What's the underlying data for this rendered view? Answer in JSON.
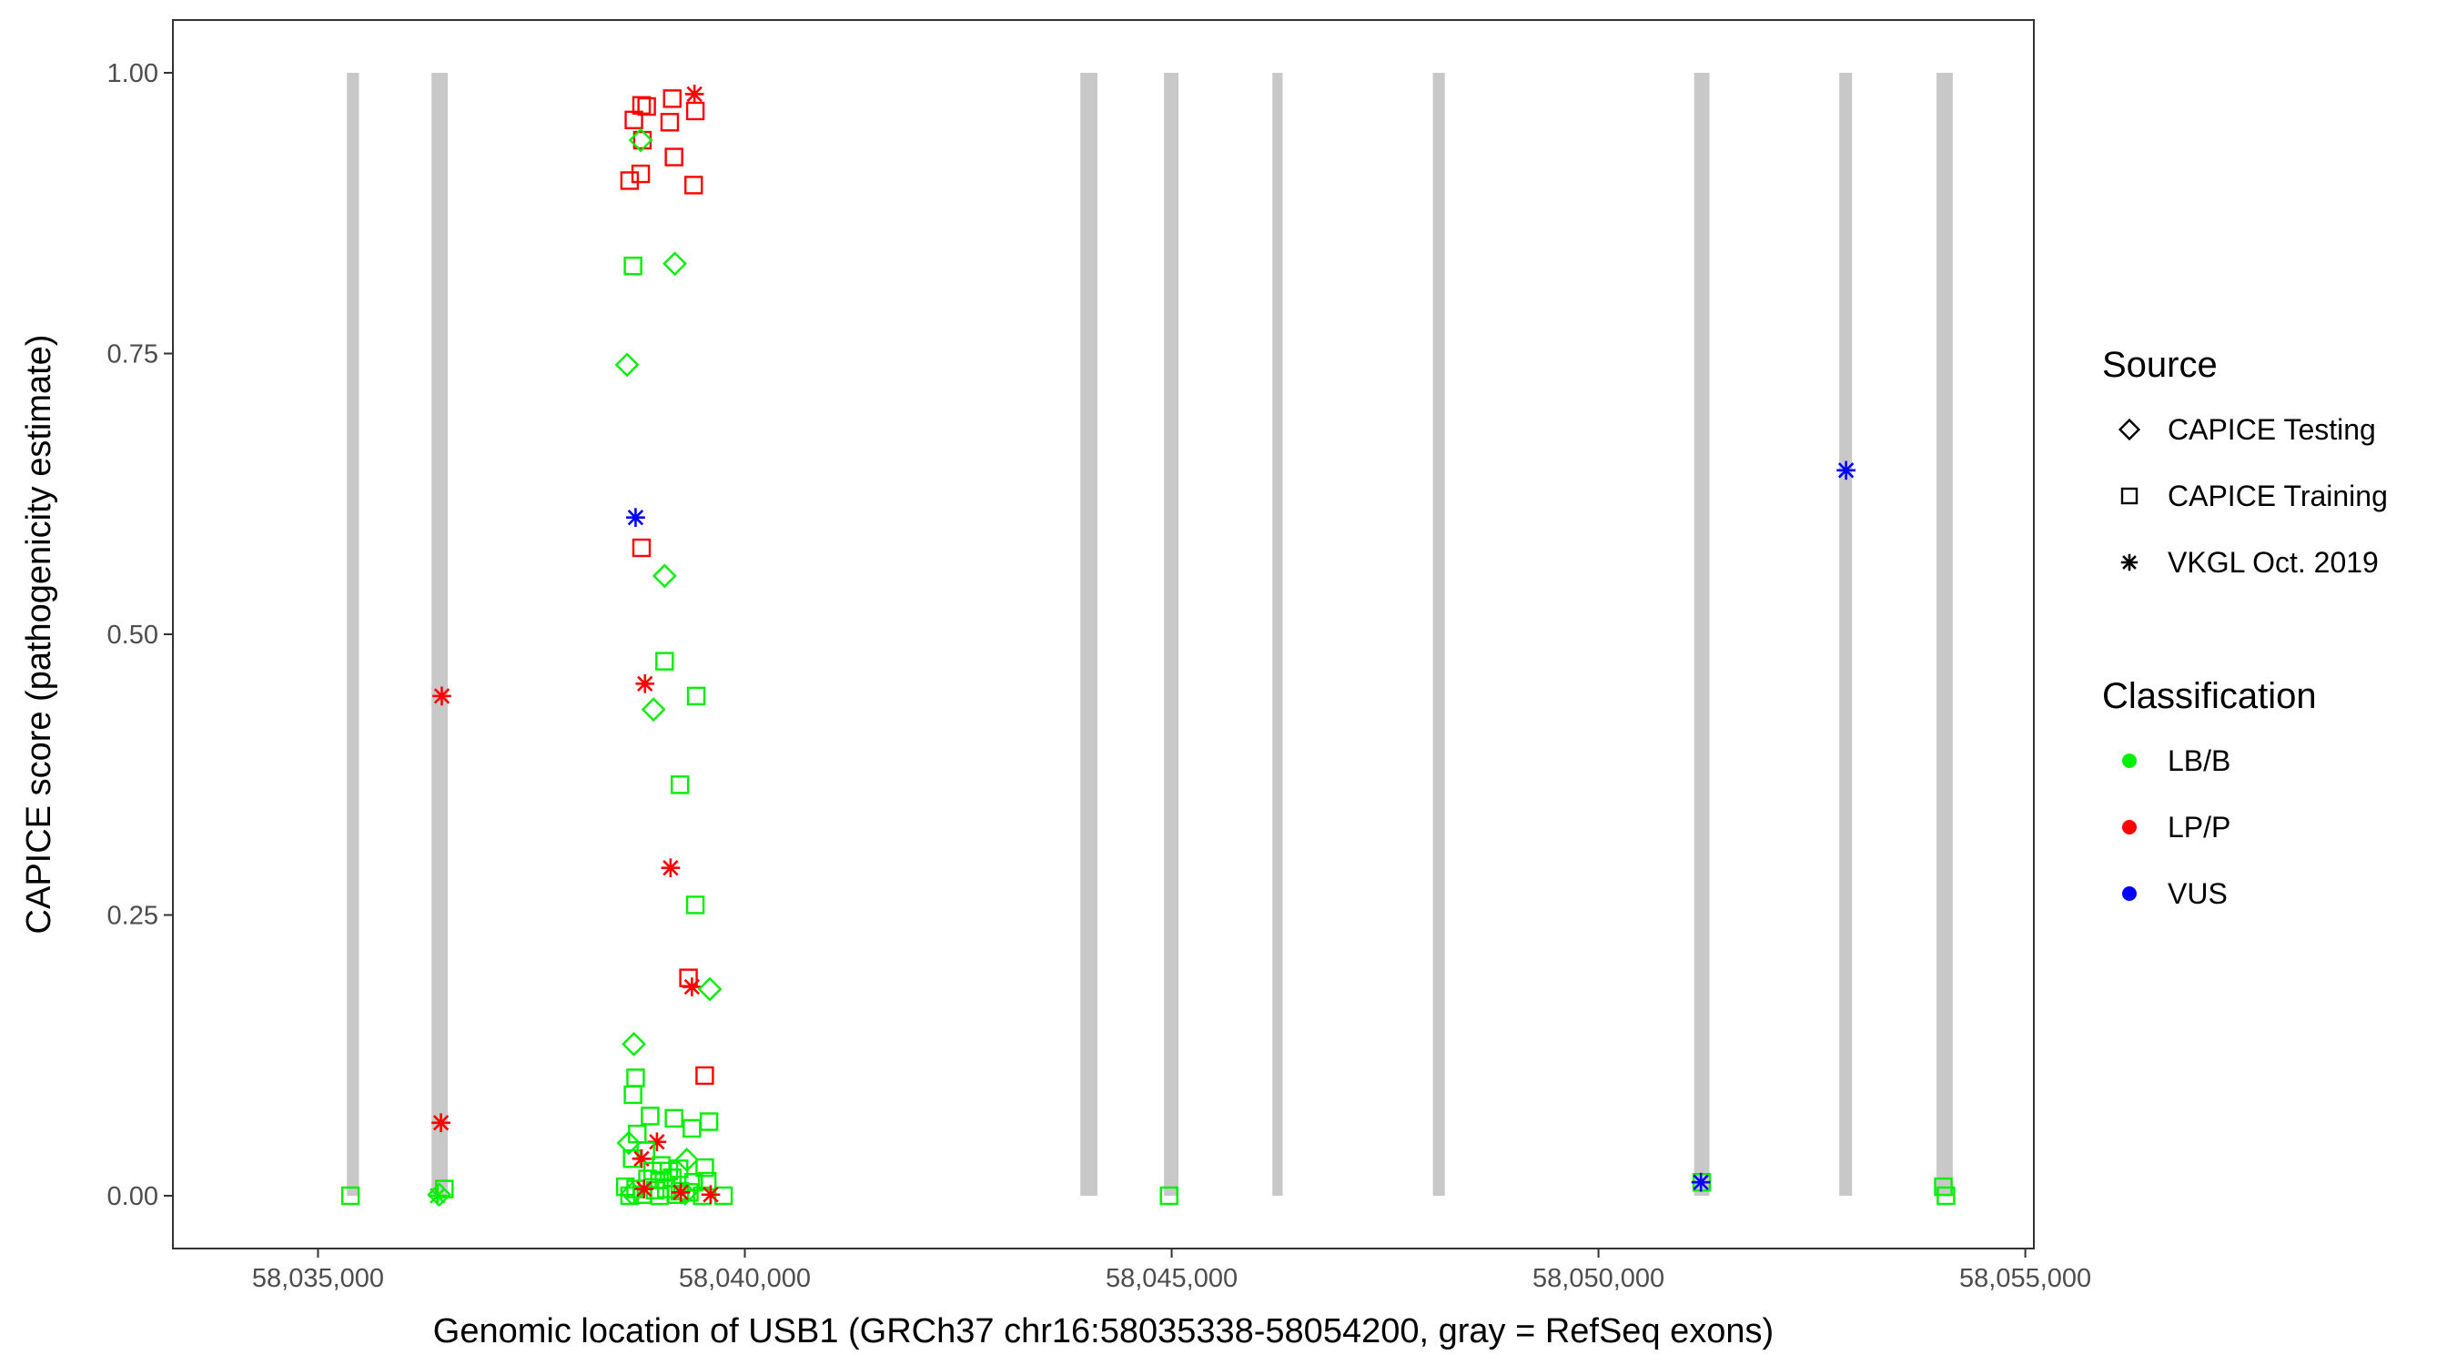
{
  "chart_data": {
    "type": "scatter",
    "xlabel": "Genomic location of USB1 (GRCh37 chr16:58035338-58054200, gray = RefSeq exons)",
    "ylabel": "CAPICE score (pathogenicity estimate)",
    "xlim": [
      58033300,
      58055100
    ],
    "ylim": [
      -0.047,
      1.047
    ],
    "x_ticks": [
      58035000,
      58040000,
      58045000,
      58050000,
      58055000
    ],
    "x_tick_labels": [
      "58,035,000",
      "58,040,000",
      "58,045,000",
      "58,050,000",
      "58,055,000"
    ],
    "y_ticks": [
      0,
      0.25,
      0.5,
      0.75,
      1.0
    ],
    "y_tick_labels": [
      "0.00",
      "0.25",
      "0.50",
      "0.75",
      "1.00"
    ],
    "grid": false,
    "exons": [
      {
        "start": 58035338,
        "end": 58035480
      },
      {
        "start": 58036330,
        "end": 58036520
      },
      {
        "start": 58043930,
        "end": 58044130
      },
      {
        "start": 58044910,
        "end": 58045080
      },
      {
        "start": 58046180,
        "end": 58046300
      },
      {
        "start": 58048060,
        "end": 58048200
      },
      {
        "start": 58051120,
        "end": 58051300
      },
      {
        "start": 58052820,
        "end": 58052970
      },
      {
        "start": 58053960,
        "end": 58054150
      }
    ],
    "legends": [
      {
        "title": "Source",
        "position": "right",
        "items": [
          {
            "label": "CAPICE Testing",
            "shape": "diamond"
          },
          {
            "label": "CAPICE Training",
            "shape": "square"
          },
          {
            "label": "VKGL Oct. 2019",
            "shape": "asterisk"
          }
        ]
      },
      {
        "title": "Classification",
        "position": "right",
        "items": [
          {
            "label": "LB/B",
            "color": "#00ee00"
          },
          {
            "label": "LP/P",
            "color": "#ff0000"
          },
          {
            "label": "VUS",
            "color": "#0000ff"
          }
        ]
      }
    ],
    "colors": {
      "LB/B": "#00ee00",
      "LP/P": "#ff0000",
      "VUS": "#0000ff",
      "exon": "#c8c8c8"
    },
    "points": [
      {
        "x": 58035380,
        "y": 0.0,
        "source": "CAPICE Training",
        "class": "LB/B"
      },
      {
        "x": 58036480,
        "y": 0.006,
        "source": "CAPICE Training",
        "class": "LB/B"
      },
      {
        "x": 58036420,
        "y": 0.001,
        "source": "CAPICE Testing",
        "class": "LB/B"
      },
      {
        "x": 58036400,
        "y": 0.0,
        "source": "VKGL Oct. 2019",
        "class": "LB/B"
      },
      {
        "x": 58036450,
        "y": 0.445,
        "source": "VKGL Oct. 2019",
        "class": "LP/P"
      },
      {
        "x": 58036440,
        "y": 0.065,
        "source": "VKGL Oct. 2019",
        "class": "LP/P"
      },
      {
        "x": 58038650,
        "y": 0.904,
        "source": "CAPICE Training",
        "class": "LP/P"
      },
      {
        "x": 58038700,
        "y": 0.958,
        "source": "CAPICE Training",
        "class": "LP/P"
      },
      {
        "x": 58038790,
        "y": 0.971,
        "source": "CAPICE Training",
        "class": "LP/P"
      },
      {
        "x": 58038850,
        "y": 0.97,
        "source": "CAPICE Training",
        "class": "LP/P"
      },
      {
        "x": 58038800,
        "y": 0.94,
        "source": "CAPICE Training",
        "class": "LP/P"
      },
      {
        "x": 58038780,
        "y": 0.91,
        "source": "CAPICE Training",
        "class": "LP/P"
      },
      {
        "x": 58039150,
        "y": 0.977,
        "source": "CAPICE Training",
        "class": "LP/P"
      },
      {
        "x": 58039120,
        "y": 0.956,
        "source": "CAPICE Training",
        "class": "LP/P"
      },
      {
        "x": 58039170,
        "y": 0.925,
        "source": "CAPICE Training",
        "class": "LP/P"
      },
      {
        "x": 58039420,
        "y": 0.966,
        "source": "CAPICE Training",
        "class": "LP/P"
      },
      {
        "x": 58039400,
        "y": 0.9,
        "source": "CAPICE Training",
        "class": "LP/P"
      },
      {
        "x": 58039410,
        "y": 0.981,
        "source": "VKGL Oct. 2019",
        "class": "LP/P"
      },
      {
        "x": 58038780,
        "y": 0.94,
        "source": "CAPICE Testing",
        "class": "LB/B"
      },
      {
        "x": 58038690,
        "y": 0.828,
        "source": "CAPICE Training",
        "class": "LB/B"
      },
      {
        "x": 58039180,
        "y": 0.83,
        "source": "CAPICE Testing",
        "class": "LB/B"
      },
      {
        "x": 58038620,
        "y": 0.74,
        "source": "CAPICE Testing",
        "class": "LB/B"
      },
      {
        "x": 58038720,
        "y": 0.604,
        "source": "VKGL Oct. 2019",
        "class": "VUS"
      },
      {
        "x": 58038790,
        "y": 0.577,
        "source": "CAPICE Training",
        "class": "LP/P"
      },
      {
        "x": 58039060,
        "y": 0.552,
        "source": "CAPICE Testing",
        "class": "LB/B"
      },
      {
        "x": 58039060,
        "y": 0.476,
        "source": "CAPICE Training",
        "class": "LB/B"
      },
      {
        "x": 58038830,
        "y": 0.456,
        "source": "VKGL Oct. 2019",
        "class": "LP/P"
      },
      {
        "x": 58039430,
        "y": 0.445,
        "source": "CAPICE Training",
        "class": "LB/B"
      },
      {
        "x": 58038930,
        "y": 0.433,
        "source": "CAPICE Testing",
        "class": "LB/B"
      },
      {
        "x": 58039240,
        "y": 0.366,
        "source": "CAPICE Training",
        "class": "LB/B"
      },
      {
        "x": 58039130,
        "y": 0.292,
        "source": "VKGL Oct. 2019",
        "class": "LP/P"
      },
      {
        "x": 58039420,
        "y": 0.259,
        "source": "CAPICE Training",
        "class": "LB/B"
      },
      {
        "x": 58039340,
        "y": 0.194,
        "source": "CAPICE Training",
        "class": "LP/P"
      },
      {
        "x": 58039380,
        "y": 0.186,
        "source": "VKGL Oct. 2019",
        "class": "LP/P"
      },
      {
        "x": 58039590,
        "y": 0.184,
        "source": "CAPICE Testing",
        "class": "LB/B"
      },
      {
        "x": 58038700,
        "y": 0.135,
        "source": "CAPICE Testing",
        "class": "LB/B"
      },
      {
        "x": 58039530,
        "y": 0.107,
        "source": "CAPICE Training",
        "class": "LP/P"
      },
      {
        "x": 58038720,
        "y": 0.105,
        "source": "CAPICE Training",
        "class": "LB/B"
      },
      {
        "x": 58038690,
        "y": 0.09,
        "source": "CAPICE Training",
        "class": "LB/B"
      },
      {
        "x": 58038890,
        "y": 0.071,
        "source": "CAPICE Training",
        "class": "LB/B"
      },
      {
        "x": 58039170,
        "y": 0.069,
        "source": "CAPICE Training",
        "class": "LB/B"
      },
      {
        "x": 58039580,
        "y": 0.066,
        "source": "CAPICE Training",
        "class": "LB/B"
      },
      {
        "x": 58039380,
        "y": 0.06,
        "source": "CAPICE Training",
        "class": "LB/B"
      },
      {
        "x": 58038740,
        "y": 0.055,
        "source": "CAPICE Training",
        "class": "LB/B"
      },
      {
        "x": 58038640,
        "y": 0.047,
        "source": "CAPICE Testing",
        "class": "LB/B"
      },
      {
        "x": 58038970,
        "y": 0.048,
        "source": "VKGL Oct. 2019",
        "class": "LP/P"
      },
      {
        "x": 58038840,
        "y": 0.04,
        "source": "CAPICE Training",
        "class": "LB/B"
      },
      {
        "x": 58038680,
        "y": 0.033,
        "source": "CAPICE Training",
        "class": "LB/B"
      },
      {
        "x": 58038790,
        "y": 0.033,
        "source": "VKGL Oct. 2019",
        "class": "LP/P"
      },
      {
        "x": 58039320,
        "y": 0.032,
        "source": "CAPICE Testing",
        "class": "LB/B"
      },
      {
        "x": 58039020,
        "y": 0.027,
        "source": "CAPICE Training",
        "class": "LB/B"
      },
      {
        "x": 58039530,
        "y": 0.025,
        "source": "CAPICE Training",
        "class": "LB/B"
      },
      {
        "x": 58038920,
        "y": 0.022,
        "source": "CAPICE Training",
        "class": "LB/B"
      },
      {
        "x": 58039110,
        "y": 0.022,
        "source": "CAPICE Training",
        "class": "LB/B"
      },
      {
        "x": 58039230,
        "y": 0.024,
        "source": "CAPICE Training",
        "class": "LB/B"
      },
      {
        "x": 58038860,
        "y": 0.015,
        "source": "CAPICE Training",
        "class": "LB/B"
      },
      {
        "x": 58039000,
        "y": 0.014,
        "source": "CAPICE Training",
        "class": "LB/B"
      },
      {
        "x": 58039150,
        "y": 0.016,
        "source": "CAPICE Training",
        "class": "LB/B"
      },
      {
        "x": 58039400,
        "y": 0.012,
        "source": "CAPICE Training",
        "class": "LB/B"
      },
      {
        "x": 58039560,
        "y": 0.013,
        "source": "CAPICE Training",
        "class": "LB/B"
      },
      {
        "x": 58038600,
        "y": 0.008,
        "source": "CAPICE Training",
        "class": "LB/B"
      },
      {
        "x": 58038720,
        "y": 0.006,
        "source": "CAPICE Training",
        "class": "LB/B"
      },
      {
        "x": 58038950,
        "y": 0.005,
        "source": "CAPICE Training",
        "class": "LB/B"
      },
      {
        "x": 58039080,
        "y": 0.006,
        "source": "CAPICE Training",
        "class": "LB/B"
      },
      {
        "x": 58039240,
        "y": 0.004,
        "source": "CAPICE Training",
        "class": "LB/B"
      },
      {
        "x": 58039350,
        "y": 0.003,
        "source": "CAPICE Training",
        "class": "LB/B"
      },
      {
        "x": 58038650,
        "y": 0.0,
        "source": "CAPICE Training",
        "class": "LB/B"
      },
      {
        "x": 58038800,
        "y": 0.001,
        "source": "CAPICE Training",
        "class": "LB/B"
      },
      {
        "x": 58039000,
        "y": 0.0,
        "source": "CAPICE Training",
        "class": "LB/B"
      },
      {
        "x": 58039200,
        "y": 0.001,
        "source": "CAPICE Training",
        "class": "LB/B"
      },
      {
        "x": 58039500,
        "y": 0.0,
        "source": "CAPICE Training",
        "class": "LB/B"
      },
      {
        "x": 58039750,
        "y": 0.0,
        "source": "CAPICE Training",
        "class": "LB/B"
      },
      {
        "x": 58038680,
        "y": 0.002,
        "source": "CAPICE Testing",
        "class": "LB/B"
      },
      {
        "x": 58039300,
        "y": 0.002,
        "source": "CAPICE Testing",
        "class": "LB/B"
      },
      {
        "x": 58038820,
        "y": 0.006,
        "source": "VKGL Oct. 2019",
        "class": "LP/P"
      },
      {
        "x": 58039250,
        "y": 0.003,
        "source": "VKGL Oct. 2019",
        "class": "LP/P"
      },
      {
        "x": 58039600,
        "y": 0.001,
        "source": "VKGL Oct. 2019",
        "class": "LP/P"
      },
      {
        "x": 58044970,
        "y": 0.0,
        "source": "CAPICE Training",
        "class": "LB/B"
      },
      {
        "x": 58051210,
        "y": 0.012,
        "source": "CAPICE Training",
        "class": "LB/B"
      },
      {
        "x": 58051200,
        "y": 0.012,
        "source": "VKGL Oct. 2019",
        "class": "VUS"
      },
      {
        "x": 58052900,
        "y": 0.646,
        "source": "VKGL Oct. 2019",
        "class": "VUS"
      },
      {
        "x": 58054040,
        "y": 0.008,
        "source": "CAPICE Training",
        "class": "LB/B"
      },
      {
        "x": 58054070,
        "y": 0.0,
        "source": "CAPICE Training",
        "class": "LB/B"
      }
    ]
  }
}
